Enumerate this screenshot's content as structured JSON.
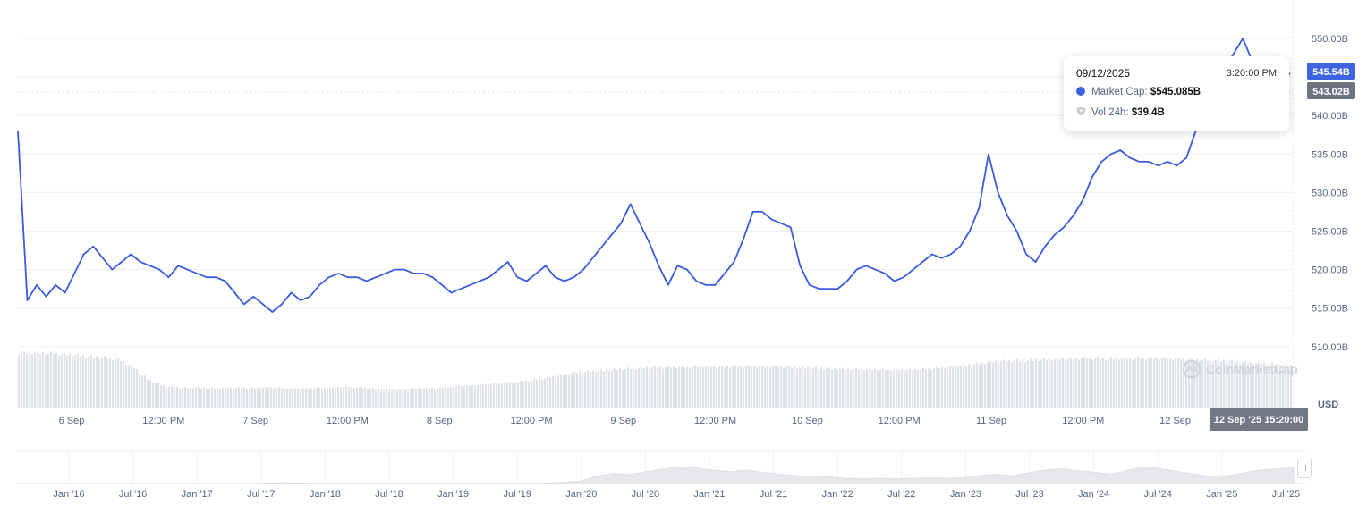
{
  "chart_data": {
    "type": "line",
    "series": [
      {
        "values": [
          538,
          516,
          518,
          516.5,
          518,
          517,
          519.5,
          522,
          523,
          521.5,
          520,
          521,
          522,
          521,
          520.5,
          520,
          519,
          520.5,
          520,
          519.5,
          519,
          519,
          518.5,
          517,
          515.5,
          516.5,
          515.5,
          514.5,
          515.5,
          517,
          516,
          516.5,
          518,
          519,
          519.5,
          519,
          519,
          518.5,
          519,
          519.5,
          520,
          520,
          519.5,
          519.5,
          519,
          518,
          517,
          517.5,
          518,
          518.5,
          519,
          520,
          521,
          519,
          518.5,
          519.5,
          520.5,
          519,
          518.5,
          519,
          520,
          521.5,
          523,
          524.5,
          526,
          528.5,
          526,
          523.5,
          520.5,
          518,
          520.5,
          520,
          518.5,
          518,
          518,
          519.5,
          521,
          524,
          527.5,
          527.5,
          526.5,
          526,
          525.5,
          520.5,
          518,
          517.5,
          517.5,
          517.5,
          518.5,
          520,
          520.5,
          520,
          519.5,
          518.5,
          519,
          520,
          521,
          522,
          521.5,
          522,
          523,
          525,
          528,
          535,
          530,
          527,
          525,
          522,
          521,
          523,
          524.5,
          525.5,
          527,
          529,
          532,
          534,
          535,
          535.5,
          534.5,
          534,
          534,
          533.5,
          534,
          533.5,
          534.5,
          538,
          541,
          543,
          546,
          548,
          550,
          547,
          546,
          545,
          544,
          545.5
        ]
      }
    ],
    "ylim": [
      505.5,
      553
    ],
    "ylabel": "USD",
    "y_ticks": [
      "550.00B",
      "545.00B",
      "540.00B",
      "535.00B",
      "530.00B",
      "525.00B",
      "520.00B",
      "515.00B",
      "510.00B"
    ],
    "x_ticks": [
      "6 Sep",
      "12:00 PM",
      "7 Sep",
      "12:00 PM",
      "8 Sep",
      "12:00 PM",
      "9 Sep",
      "12:00 PM",
      "10 Sep",
      "12:00 PM",
      "11 Sep",
      "12:00 PM",
      "12 Sep"
    ],
    "volume_profile": [
      0.95,
      0.96,
      0.95,
      0.92,
      0.9,
      0.88,
      0.85,
      0.7,
      0.45,
      0.36,
      0.35,
      0.35,
      0.34,
      0.35,
      0.34,
      0.35,
      0.34,
      0.33,
      0.34,
      0.35,
      0.36,
      0.34,
      0.33,
      0.32,
      0.33,
      0.34,
      0.36,
      0.38,
      0.4,
      0.42,
      0.44,
      0.48,
      0.52,
      0.58,
      0.62,
      0.64,
      0.66,
      0.68,
      0.7,
      0.7,
      0.71,
      0.72,
      0.72,
      0.71,
      0.72,
      0.72,
      0.72,
      0.7,
      0.69,
      0.68,
      0.67,
      0.67,
      0.66,
      0.66,
      0.66,
      0.67,
      0.7,
      0.74,
      0.76,
      0.8,
      0.82,
      0.82,
      0.84,
      0.85,
      0.86,
      0.86,
      0.86,
      0.86,
      0.86,
      0.86,
      0.86,
      0.84,
      0.83,
      0.82,
      0.8,
      0.78,
      0.76,
      0.74
    ],
    "current_price_label": "545.54B",
    "hover_price_label": "543.02B",
    "hover_time_label": "12 Sep '25 15:20:00",
    "navigator_x_ticks": [
      "Jan '16",
      "Jul '16",
      "Jan '17",
      "Jul '17",
      "Jan '18",
      "Jul '18",
      "Jan '19",
      "Jul '19",
      "Jan '20",
      "Jul '20",
      "Jan '21",
      "Jul '21",
      "Jan '22",
      "Jul '22",
      "Jan '23",
      "Jul '23",
      "Jan '24",
      "Jul '24",
      "Jan '25",
      "Jul '25"
    ],
    "navigator_profile": [
      0,
      0,
      0,
      0,
      0,
      0,
      0,
      0,
      0,
      0,
      0,
      0,
      0,
      0,
      0,
      0.02,
      0.03,
      0.02,
      0.01,
      0.01,
      0.01,
      0.01,
      0.01,
      0.01,
      0.01,
      0.01,
      0.01,
      0.01,
      0.01,
      0.01,
      0.01,
      0.01,
      0.02,
      0.05,
      0.1,
      0.3,
      0.38,
      0.35,
      0.45,
      0.55,
      0.62,
      0.58,
      0.5,
      0.45,
      0.5,
      0.42,
      0.35,
      0.3,
      0.28,
      0.25,
      0.2,
      0.18,
      0.2,
      0.18,
      0.2,
      0.22,
      0.2,
      0.22,
      0.3,
      0.35,
      0.3,
      0.4,
      0.5,
      0.55,
      0.48,
      0.42,
      0.35,
      0.5,
      0.62,
      0.55,
      0.45,
      0.35,
      0.28,
      0.3,
      0.4,
      0.5,
      0.55,
      0.6
    ],
    "watermark": "CoinMarketCap",
    "colors": {
      "line": "#3b5bdb",
      "price_badge": "#3d63e0",
      "hover_badge": "#6d7480",
      "time_badge": "#727985",
      "grid": "#eef0f3",
      "volume": "#dfe2e7",
      "navigator": "#e6e8ec"
    }
  },
  "tooltip": {
    "date": "09/12/2025",
    "time": "3:20:00 PM",
    "market_cap_label": "Market Cap:",
    "market_cap_value": "$545.085B",
    "volume_label": "Vol 24h:",
    "volume_value": "$39.4B",
    "market_cap_color": "#3d63e0"
  }
}
